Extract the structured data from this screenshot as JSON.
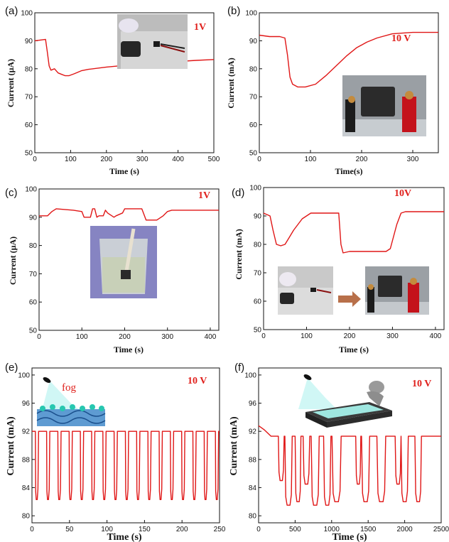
{
  "chart_data": [
    {
      "panel": "(a)",
      "type": "line",
      "annotation": "1V",
      "xlabel": "Time (s)",
      "ylabel": "Current (µA)",
      "xlim": [
        0,
        500
      ],
      "ylim": [
        50,
        100
      ],
      "xticks": [
        0,
        100,
        200,
        300,
        400,
        500
      ],
      "yticks": [
        50,
        60,
        70,
        80,
        90,
        100
      ],
      "series": [
        {
          "x": [
            0,
            30,
            35,
            40,
            45,
            55,
            65,
            75,
            85,
            95,
            110,
            130,
            150,
            200,
            250,
            300,
            350,
            400,
            450,
            500
          ],
          "y": [
            90,
            90.5,
            86,
            81,
            79.5,
            80,
            78.5,
            78,
            77.5,
            77.5,
            78.2,
            79.3,
            79.8,
            80.6,
            81.2,
            81.8,
            82.2,
            82.6,
            83,
            83.3
          ]
        }
      ]
    },
    {
      "panel": "(b)",
      "type": "line",
      "annotation": "10 V",
      "xlabel": "Time(s)",
      "ylabel": "Current (mA)",
      "xlim": [
        0,
        350
      ],
      "ylim": [
        50,
        100
      ],
      "xticks": [
        0,
        100,
        200,
        300
      ],
      "yticks": [
        50,
        60,
        70,
        80,
        90,
        100
      ],
      "series": [
        {
          "x": [
            0,
            20,
            40,
            50,
            55,
            60,
            65,
            75,
            90,
            110,
            130,
            150,
            170,
            190,
            210,
            230,
            260,
            300,
            350
          ],
          "y": [
            92,
            91.5,
            91.5,
            91,
            85,
            77,
            74.5,
            73.5,
            73.5,
            74.5,
            77.5,
            81,
            84.5,
            87.5,
            89.5,
            91,
            92.5,
            93,
            93
          ]
        }
      ]
    },
    {
      "panel": "(c)",
      "type": "line",
      "annotation": "1V",
      "xlabel": "Time (s)",
      "ylabel": "Current (µA)",
      "xlim": [
        0,
        420
      ],
      "ylim": [
        50,
        100
      ],
      "xticks": [
        0,
        100,
        200,
        300,
        400
      ],
      "yticks": [
        50,
        60,
        70,
        80,
        90,
        100
      ],
      "series": [
        {
          "x": [
            0,
            20,
            30,
            40,
            80,
            100,
            105,
            120,
            125,
            130,
            135,
            140,
            150,
            155,
            160,
            175,
            180,
            195,
            200,
            240,
            245,
            250,
            265,
            275,
            290,
            300,
            310,
            350,
            420
          ],
          "y": [
            90.5,
            90.5,
            92,
            93,
            92.5,
            92,
            90,
            90,
            93,
            93,
            90,
            90.5,
            90.5,
            92.5,
            91.5,
            90,
            90.5,
            91.5,
            93,
            93,
            91,
            89,
            89,
            89,
            90.5,
            92,
            92.5,
            92.5,
            92.5
          ]
        }
      ]
    },
    {
      "panel": "(d)",
      "type": "line",
      "annotation": "10V",
      "xlabel": "Time (s)",
      "ylabel": "Current (mA)",
      "xlim": [
        0,
        420
      ],
      "ylim": [
        50,
        100
      ],
      "xticks": [
        0,
        100,
        200,
        300,
        400
      ],
      "yticks": [
        50,
        60,
        70,
        80,
        90,
        100
      ],
      "series": [
        {
          "x": [
            0,
            15,
            22,
            30,
            40,
            50,
            60,
            70,
            90,
            110,
            130,
            150,
            175,
            180,
            185,
            200,
            230,
            260,
            285,
            295,
            310,
            320,
            330,
            360,
            420
          ],
          "y": [
            91,
            90,
            85,
            80,
            79.5,
            80,
            82.5,
            85,
            89,
            91,
            91,
            91,
            91,
            80,
            77,
            77.5,
            77.5,
            77.5,
            77.5,
            78.5,
            87,
            91,
            91.5,
            91.5,
            91.5
          ]
        }
      ]
    },
    {
      "panel": "(e)",
      "type": "line",
      "annotation": "10 V",
      "label_fog": "fog",
      "xlabel": "Time (s)",
      "ylabel": "Current (mA)",
      "xlim": [
        0,
        250
      ],
      "ylim": [
        79,
        101
      ],
      "xticks": [
        0,
        50,
        100,
        150,
        200,
        250
      ],
      "yticks": [
        80,
        84,
        88,
        92,
        96,
        100
      ],
      "pulse_high": 92,
      "pulse_low": 82.3,
      "pulse_starts": [
        4.5,
        19.5,
        34.5,
        49.5,
        64.5,
        79.5,
        94.5,
        109.5,
        124.5,
        139.5,
        154.5,
        169.5,
        184.5,
        199.5,
        214.5,
        229.5,
        244.5
      ],
      "pulse_width": 4.3
    },
    {
      "panel": "(f)",
      "type": "line",
      "annotation": "10 V",
      "xlabel": "Time (s)",
      "ylabel": "Current (mA)",
      "xlim": [
        0,
        2500
      ],
      "ylim": [
        79,
        101
      ],
      "xticks": [
        0,
        500,
        1000,
        1500,
        2000,
        2500
      ],
      "yticks": [
        80,
        84,
        88,
        92,
        96,
        100
      ],
      "baseline_start": 92.8,
      "baseline": 91.3,
      "dips": [
        {
          "start": 270,
          "end": 350,
          "min": 85
        },
        {
          "start": 360,
          "end": 460,
          "min": 81.5
        },
        {
          "start": 500,
          "end": 580,
          "min": 82
        },
        {
          "start": 610,
          "end": 700,
          "min": 84.5
        },
        {
          "start": 720,
          "end": 830,
          "min": 81.5
        },
        {
          "start": 890,
          "end": 990,
          "min": 81.5
        },
        {
          "start": 1005,
          "end": 1130,
          "min": 82
        },
        {
          "start": 1330,
          "end": 1400,
          "min": 84.5
        },
        {
          "start": 1410,
          "end": 1520,
          "min": 82
        },
        {
          "start": 1620,
          "end": 1740,
          "min": 82
        },
        {
          "start": 1870,
          "end": 1950,
          "min": 84.5
        },
        {
          "start": 1950,
          "end": 2050,
          "min": 82
        },
        {
          "start": 2140,
          "end": 2230,
          "min": 82
        }
      ]
    }
  ]
}
